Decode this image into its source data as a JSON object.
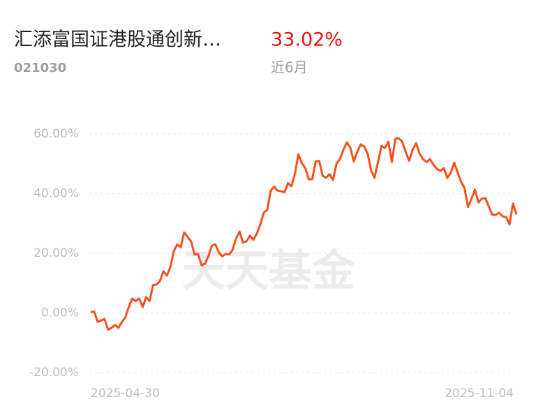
{
  "header": {
    "title": "汇添富国证港股通创新…",
    "return": "33.02%",
    "code": "021030",
    "period": "近6月"
  },
  "watermark": "天天基金",
  "chart_data": {
    "type": "line",
    "categories": [
      "2025-04-30",
      null,
      null,
      null,
      null,
      null,
      null,
      null,
      null,
      null,
      null,
      null,
      null,
      null,
      null,
      null,
      null,
      null,
      null,
      null,
      null,
      null,
      null,
      null,
      null,
      null,
      null,
      null,
      null,
      null,
      null,
      null,
      null,
      null,
      null,
      null,
      null,
      null,
      null,
      null,
      null,
      null,
      null,
      null,
      null,
      null,
      null,
      null,
      null,
      null,
      null,
      null,
      null,
      null,
      null,
      null,
      null,
      null,
      null,
      null,
      null,
      null,
      null,
      null,
      null,
      null,
      null,
      null,
      null,
      null,
      null,
      null,
      null,
      null,
      null,
      null,
      null,
      null,
      null,
      null,
      null,
      null,
      null,
      null,
      null,
      null,
      null,
      null,
      null,
      null,
      null,
      null,
      null,
      null,
      null,
      null,
      null,
      null,
      null,
      null,
      null,
      null,
      null,
      null,
      null,
      null,
      null,
      null,
      null,
      null,
      null,
      null,
      null,
      null,
      null,
      null,
      null,
      null,
      null,
      null,
      null,
      null,
      null,
      "2025-11-04"
    ],
    "series": [
      {
        "color": "#f4511e",
        "values": [
          0.2,
          0.5,
          -3,
          -2.5,
          -2,
          -5.6,
          -5,
          -4,
          -5,
          -3,
          -1.5,
          2,
          4.8,
          4,
          4.8,
          2,
          5.3,
          4,
          9.3,
          9.5,
          10.7,
          14,
          12.5,
          15.4,
          20.7,
          23,
          22,
          27,
          25.5,
          24,
          19.6,
          19.8,
          16,
          16.5,
          19,
          22.6,
          23,
          20.3,
          19,
          19.8,
          19.6,
          21.2,
          25,
          27.3,
          23.6,
          24,
          25.9,
          24.5,
          26.6,
          29.7,
          33.6,
          34.6,
          41,
          42.4,
          41,
          40.8,
          40.5,
          43.5,
          42.5,
          46.7,
          53.2,
          50.2,
          48.6,
          44.8,
          44.8,
          50.8,
          51,
          46,
          45.3,
          46.5,
          44.6,
          50,
          51.6,
          54.7,
          57.2,
          55.4,
          50.8,
          54,
          56.5,
          55.8,
          53.4,
          47.8,
          45.3,
          50.6,
          56,
          55.3,
          57.4,
          50.6,
          58.4,
          58.6,
          57.4,
          54,
          51,
          54.7,
          56.9,
          53.4,
          51.6,
          50.6,
          51.6,
          49.7,
          48.3,
          47.6,
          48.6,
          45.3,
          46.9,
          50.4,
          47.1,
          44,
          41.8,
          35.5,
          38.3,
          41.3,
          37.1,
          38.3,
          38.5,
          35.7,
          32.9,
          32.9,
          33.6,
          32.4,
          32.2,
          29.7,
          36.7,
          33.02
        ]
      }
    ],
    "ylim": [
      -20,
      60
    ],
    "yticks": [
      {
        "value": -20,
        "label": "-20.00%"
      },
      {
        "value": 0,
        "label": "0.00%"
      },
      {
        "value": 20,
        "label": "20.00%"
      },
      {
        "value": 40,
        "label": "40.00%"
      },
      {
        "value": 60,
        "label": "60.00%"
      }
    ],
    "grid": true
  }
}
